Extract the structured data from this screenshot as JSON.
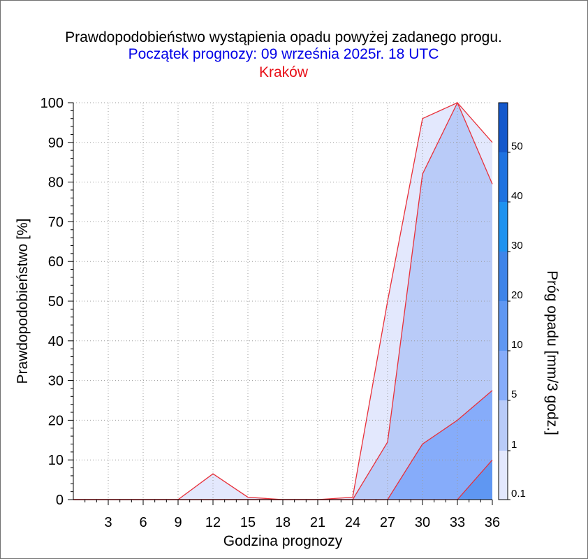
{
  "colors": {
    "c01": "#e3e8fd",
    "c1": "#b9cbf8",
    "c5": "#86acfa",
    "c10": "#5f97f2",
    "c20": "#3f84e9",
    "c30": "#1e92f0",
    "c40": "#1e72e0",
    "c50": "#1458cc",
    "c60": "#0a3fad",
    "line": "#e8303a",
    "grid": "#9a9a9a"
  },
  "chart_data": {
    "type": "area",
    "title": "Prawdopodobieństwo wystąpienia opadu powyżej zadanego progu.",
    "subtitle": "Początek prognozy: 09 września 2025r. 18 UTC",
    "location": "Kraków",
    "xlabel": "Godzina prognozy",
    "ylabel": "Prawdopodobieństwo [%]",
    "colorbar_label": "Próg opadu [mm/3 godz.]",
    "xlim": [
      0,
      36
    ],
    "ylim": [
      0,
      100
    ],
    "grid": true,
    "x": [
      0,
      3,
      6,
      9,
      12,
      15,
      18,
      21,
      24,
      27,
      30,
      33,
      36
    ],
    "x_tick_labels": [
      "3",
      "6",
      "9",
      "12",
      "15",
      "18",
      "21",
      "24",
      "27",
      "30",
      "33",
      "36"
    ],
    "y_tick_labels": [
      "0",
      "10",
      "20",
      "30",
      "40",
      "50",
      "60",
      "70",
      "80",
      "90",
      "100"
    ],
    "colorbar_ticks": [
      "0.1",
      "1",
      "5",
      "10",
      "20",
      "30",
      "40",
      "50"
    ],
    "series": [
      {
        "threshold": "0.1",
        "values": [
          0,
          0,
          0,
          0,
          6.5,
          0.6,
          0,
          0,
          0.6,
          50,
          96,
          100,
          90
        ]
      },
      {
        "threshold": "1",
        "values": [
          0,
          0,
          0,
          0,
          0,
          0,
          0,
          0,
          0,
          14.5,
          82,
          100,
          79.5
        ]
      },
      {
        "threshold": "5",
        "values": [
          0,
          0,
          0,
          0,
          0,
          0,
          0,
          0,
          0,
          0,
          14,
          20,
          27.5
        ]
      },
      {
        "threshold": "10",
        "values": [
          0,
          0,
          0,
          0,
          0,
          0,
          0,
          0,
          0,
          0,
          0,
          0,
          10
        ]
      }
    ]
  }
}
